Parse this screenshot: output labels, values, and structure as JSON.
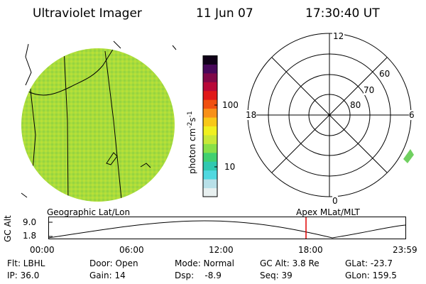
{
  "header": {
    "instrument": "Ultraviolet Imager",
    "date": "11 Jun 07",
    "time": "17:30:40 UT"
  },
  "colorbar": {
    "unit_label": "photon cm",
    "unit_exp1": "-2",
    "unit_s": "s",
    "unit_exp2": "-1",
    "ticks": [
      "100",
      "10"
    ],
    "colors": [
      "#e8f0f0",
      "#b8e0e8",
      "#50d8e0",
      "#30c8b0",
      "#40d070",
      "#88e048",
      "#c8e838",
      "#f0f020",
      "#f8c818",
      "#f89018",
      "#f05010",
      "#e01818",
      "#b80838",
      "#800848",
      "#48085a",
      "#100018"
    ]
  },
  "earth": {
    "fill": "#a8dc3c",
    "fill_dark": "#78c83c"
  },
  "polar": {
    "mlt_labels": {
      "top": "12",
      "bottom": "0",
      "left": "18",
      "right": "6"
    },
    "lat_labels": [
      "60",
      "70",
      "80"
    ]
  },
  "labels": {
    "geographic": "Geographic Lat/Lon",
    "apex": "Apex MLat/MLT"
  },
  "orbit": {
    "axis_label": "GC Alt",
    "y_ticks": [
      "9.0",
      "1.8"
    ],
    "x_ticks": [
      "00:00",
      "06:00",
      "12:00",
      "18:00",
      "23:59"
    ],
    "current_time_color": "#e00000"
  },
  "info": {
    "flt": "Flt: LBHL",
    "ip": "IP: 36.0",
    "door": "Door: Open",
    "gain": "Gain: 14",
    "mode": "Mode: Normal",
    "dsp": "Dsp:    -8.9",
    "gcalt": "GC Alt: 3.8 Re",
    "seq": "Seq: 39",
    "glat": "GLat: -23.7",
    "glon": "GLon: 159.5"
  }
}
